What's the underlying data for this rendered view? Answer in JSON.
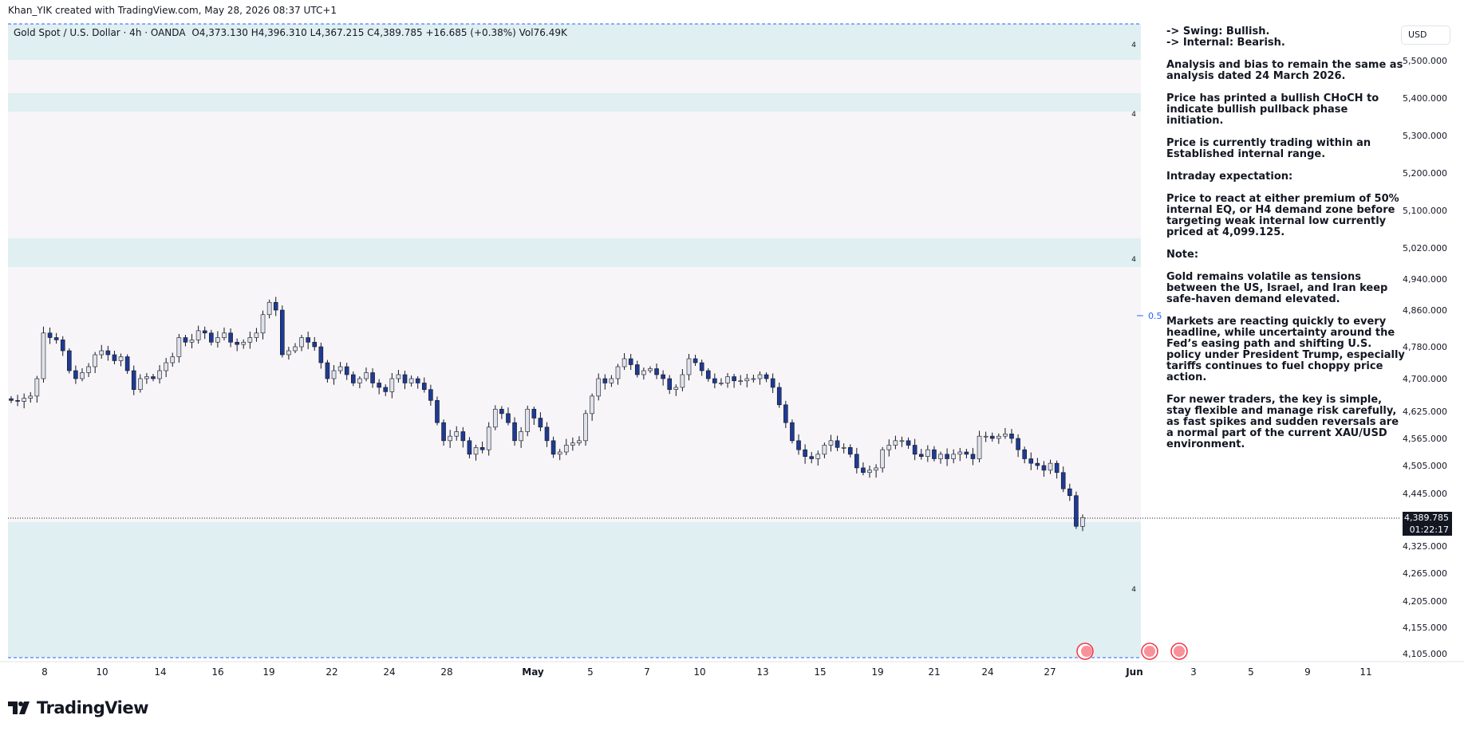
{
  "header": {
    "credit": "Khan_YIK created with TradingView.com, May 28, 2026 08:37 UTC+1"
  },
  "symbol": {
    "name": "Gold Spot / U.S. Dollar · 4h · OANDA",
    "ohlc": "O4,373.130  H4,396.310  L4,367.215  C4,389.785  +16.685 (+0.38%)  Vol76.49K"
  },
  "currency": "USD",
  "price_tag": {
    "price": "4,389.785",
    "countdown": "01:22:17"
  },
  "zone_label": "4",
  "fib_label": "0.5",
  "notes": {
    "swing": "-> Swing:  Bullish.",
    "internal": "-> Internal:  Bearish.",
    "paragraphs": [
      "Analysis and bias to remain the same as analysis dated 24 March 2026.",
      "Price has printed a bullish CHoCH to indicate bullish pullback phase initiation.",
      "Price is currently trading within an Established internal range.",
      "Intraday expectation:",
      "Price to react at either premium of 50% internal EQ, or H4 demand zone before targeting weak internal low currently priced at 4,099.125.",
      "Note:",
      "Gold remains volatile as tensions between the US, Israel, and Iran keep safe-haven demand elevated.",
      "Markets are reacting quickly to every headline, while uncertainty around the Fed’s easing path and shifting U.S. policy under President Trump, especially tariffs continues to fuel choppy price action.",
      "For newer traders, the key is simple, stay flexible and manage risk carefully, as fast spikes and sudden reversals are a normal part of the current XAU/USD environment."
    ]
  },
  "logo_text": "TradingView",
  "colors": {
    "up": "#e0e3eb",
    "down": "#1f3a93",
    "wick": "#131722",
    "zone": "#e0eff1",
    "range_bg": "#f7f5f7",
    "fib": "#2962ff"
  },
  "chart_data": {
    "type": "candlestick",
    "timeframe": "4h",
    "y_ticks": [
      "5,500.000",
      "5,400.000",
      "5,300.000",
      "5,200.000",
      "5,100.000",
      "5,020.000",
      "4,940.000",
      "4,860.000",
      "4,780.000",
      "4,700.000",
      "4,625.000",
      "4,565.000",
      "4,505.000",
      "4,445.000",
      "4,325.000",
      "4,265.000",
      "4,205.000",
      "4,155.000",
      "4,105.000"
    ],
    "y_tick_values": [
      5500,
      5400,
      5300,
      5200,
      5100,
      5020,
      4940,
      4860,
      4780,
      4700,
      4625,
      4565,
      4505,
      4445,
      4325,
      4265,
      4205,
      4155,
      4105
    ],
    "x_ticks": [
      "8",
      "10",
      "14",
      "16",
      "19",
      "22",
      "24",
      "28",
      "May",
      "5",
      "7",
      "10",
      "13",
      "15",
      "19",
      "21",
      "24",
      "27",
      "Jun",
      "3",
      "5",
      "9",
      "11"
    ],
    "last_price": 4389.785,
    "weak_internal_low": 4099.125,
    "zones": [
      {
        "name": "supply-zone-1",
        "from": 5540,
        "to": 5490
      },
      {
        "name": "supply-zone-2",
        "from": 5432,
        "to": 5400
      },
      {
        "name": "supply-zone-3",
        "from": 5020,
        "to": 4985
      },
      {
        "name": "h4-demand-zone",
        "from": 4380,
        "to": 4100
      }
    ],
    "internal_range": {
      "high": 5440,
      "low": 4390
    },
    "fib_0_5": 4860,
    "closes": [
      4650,
      4648,
      4655,
      4660,
      4700,
      4810,
      4800,
      4795,
      4770,
      4720,
      4700,
      4715,
      4730,
      4760,
      4770,
      4760,
      4745,
      4755,
      4720,
      4675,
      4700,
      4705,
      4700,
      4720,
      4740,
      4755,
      4800,
      4790,
      4795,
      4815,
      4810,
      4790,
      4800,
      4810,
      4790,
      4785,
      4790,
      4800,
      4810,
      4850,
      4880,
      4860,
      4760,
      4770,
      4780,
      4800,
      4790,
      4780,
      4740,
      4700,
      4720,
      4730,
      4710,
      4690,
      4700,
      4715,
      4690,
      4680,
      4670,
      4700,
      4710,
      4690,
      4700,
      4690,
      4675,
      4650,
      4600,
      4560,
      4570,
      4580,
      4560,
      4530,
      4545,
      4540,
      4590,
      4630,
      4620,
      4600,
      4560,
      4580,
      4630,
      4610,
      4590,
      4560,
      4530,
      4535,
      4550,
      4555,
      4560,
      4620,
      4660,
      4700,
      4690,
      4700,
      4730,
      4750,
      4735,
      4710,
      4720,
      4725,
      4710,
      4700,
      4675,
      4680,
      4710,
      4750,
      4740,
      4720,
      4700,
      4690,
      4690,
      4705,
      4695,
      4695,
      4700,
      4700,
      4710,
      4700,
      4680,
      4640,
      4600,
      4560,
      4540,
      4525,
      4520,
      4530,
      4550,
      4560,
      4545,
      4545,
      4530,
      4500,
      4490,
      4495,
      4500,
      4540,
      4550,
      4560,
      4560,
      4550,
      4530,
      4525,
      4540,
      4520,
      4530,
      4520,
      4530,
      4535,
      4530,
      4520,
      4570,
      4570,
      4565,
      4570,
      4575,
      4565,
      4540,
      4520,
      4510,
      4505,
      4495,
      4510,
      4490,
      4455,
      4440,
      4370,
      4390
    ]
  }
}
